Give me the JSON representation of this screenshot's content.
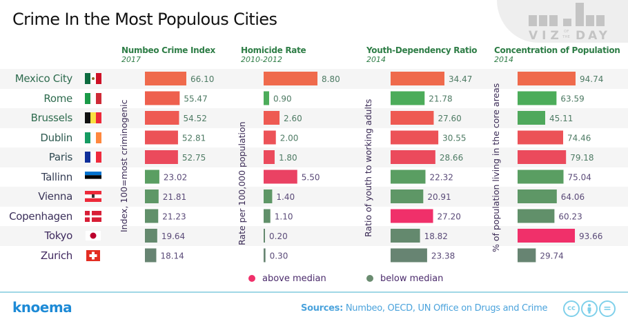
{
  "title": "Crime In the Most Populous Cities",
  "logo": {
    "viz": "VIZ",
    "of": "OF",
    "the": "THE",
    "day": "DAY"
  },
  "colors": {
    "above_median": "#f0306a",
    "below_median": "#6a8c70",
    "row_alt": "#f5f5f5",
    "header_green": "#2e7d46"
  },
  "cities": [
    {
      "name": "Mexico City",
      "flag": "mexico-flag",
      "color": "#2e6b4e"
    },
    {
      "name": "Rome",
      "flag": "italy-flag",
      "color": "#2e6b4e"
    },
    {
      "name": "Brussels",
      "flag": "belgium-flag",
      "color": "#2e6b4e"
    },
    {
      "name": "Dublin",
      "flag": "ireland-flag",
      "color": "#2e5a50"
    },
    {
      "name": "Paris",
      "flag": "france-flag",
      "color": "#304a52"
    },
    {
      "name": "Tallinn",
      "flag": "estonia-flag",
      "color": "#363e55"
    },
    {
      "name": "Vienna",
      "flag": "austria-flag",
      "color": "#3a3558"
    },
    {
      "name": "Copenhagen",
      "flag": "denmark-flag",
      "color": "#3b2f5a"
    },
    {
      "name": "Tokyo",
      "flag": "japan-flag",
      "color": "#3e2a5e"
    },
    {
      "name": "Zurich",
      "flag": "switzerland-flag",
      "color": "#40285f"
    }
  ],
  "legend": [
    {
      "label": "above median",
      "color": "#f0306a"
    },
    {
      "label": "below median",
      "color": "#6a8c70"
    }
  ],
  "footer": {
    "brand": "knoema",
    "sources_label": "Sources:",
    "sources_text": " Numbeo, OECD, UN Office on Drugs and Crime",
    "license_icons": [
      "cc-icon",
      "attribution-icon",
      "no-derivatives-icon"
    ],
    "cc_text": "cc",
    "nd_text": "="
  },
  "chart_data": [
    {
      "type": "bar",
      "orientation": "horizontal",
      "title": "Numbeo Crime Index",
      "subtitle": "2017",
      "ylabel": "Index, 100=most criminogenic",
      "categories": [
        "Mexico City",
        "Rome",
        "Brussels",
        "Dublin",
        "Paris",
        "Tallinn",
        "Vienna",
        "Copenhagen",
        "Tokyo",
        "Zurich"
      ],
      "values": [
        66.1,
        55.47,
        54.52,
        52.81,
        52.75,
        23.02,
        21.81,
        21.23,
        19.64,
        18.14
      ],
      "labels": [
        "66.10",
        "55.47",
        "54.52",
        "52.81",
        "52.75",
        "23.02",
        "21.81",
        "21.23",
        "19.64",
        "18.14"
      ],
      "bar_colors": [
        "#ef6a4c",
        "#ee604e",
        "#ee5a52",
        "#ec5257",
        "#eb4a5c",
        "#5a9e62",
        "#5e9766",
        "#61906a",
        "#64896e",
        "#678472"
      ],
      "xlim": [
        0,
        66.1
      ]
    },
    {
      "type": "bar",
      "orientation": "horizontal",
      "title": "Homicide Rate",
      "subtitle": "2010-2012",
      "ylabel": "Rate per 100,000 population",
      "categories": [
        "Mexico City",
        "Rome",
        "Brussels",
        "Dublin",
        "Paris",
        "Tallinn",
        "Vienna",
        "Copenhagen",
        "Tokyo",
        "Zurich"
      ],
      "values": [
        8.8,
        0.9,
        2.6,
        2.0,
        1.8,
        5.5,
        1.4,
        1.1,
        0.2,
        0.3
      ],
      "labels": [
        "8.80",
        "0.90",
        "2.60",
        "2.00",
        "1.80",
        "5.50",
        "1.40",
        "1.10",
        "0.20",
        "0.30"
      ],
      "bar_colors": [
        "#ef6a4c",
        "#4cac5a",
        "#ee5a52",
        "#ec5257",
        "#eb4a5c",
        "#ea4263",
        "#5e9766",
        "#61906a",
        "#64896e",
        "#678472"
      ],
      "xlim": [
        0,
        8.8
      ]
    },
    {
      "type": "bar",
      "orientation": "horizontal",
      "title": "Youth-Dependency Ratio",
      "subtitle": "2014",
      "ylabel": "Ratio of youth to working adults",
      "categories": [
        "Mexico City",
        "Rome",
        "Brussels",
        "Dublin",
        "Paris",
        "Tallinn",
        "Vienna",
        "Copenhagen",
        "Tokyo",
        "Zurich"
      ],
      "values": [
        34.47,
        21.78,
        27.6,
        30.55,
        28.66,
        22.32,
        20.91,
        27.2,
        18.82,
        23.38
      ],
      "labels": [
        "34.47",
        "21.78",
        "27.60",
        "30.55",
        "28.66",
        "22.32",
        "20.91",
        "27.20",
        "18.82",
        "23.38"
      ],
      "bar_colors": [
        "#ef6a4c",
        "#4cac5a",
        "#ee5a52",
        "#ec5257",
        "#eb4a5c",
        "#5a9e62",
        "#5e9766",
        "#f0306a",
        "#64896e",
        "#678472"
      ],
      "xlim": [
        0,
        34.47
      ]
    },
    {
      "type": "bar",
      "orientation": "horizontal",
      "title": "Concentration of Population",
      "subtitle": "2014",
      "ylabel": "% of population living in the core areas",
      "categories": [
        "Mexico City",
        "Rome",
        "Brussels",
        "Dublin",
        "Paris",
        "Tallinn",
        "Vienna",
        "Copenhagen",
        "Tokyo",
        "Zurich"
      ],
      "values": [
        94.74,
        63.59,
        45.11,
        74.46,
        79.18,
        75.04,
        64.06,
        60.23,
        93.66,
        29.74
      ],
      "labels": [
        "94.74",
        "63.59",
        "45.11",
        "74.46",
        "79.18",
        "75.04",
        "64.06",
        "60.23",
        "93.66",
        "29.74"
      ],
      "bar_colors": [
        "#ef6a4c",
        "#4cac5a",
        "#4fa85c",
        "#ec5257",
        "#eb4a5c",
        "#5a9e62",
        "#5e9766",
        "#61906a",
        "#f0306a",
        "#678472"
      ],
      "xlim": [
        0,
        94.74
      ]
    }
  ]
}
